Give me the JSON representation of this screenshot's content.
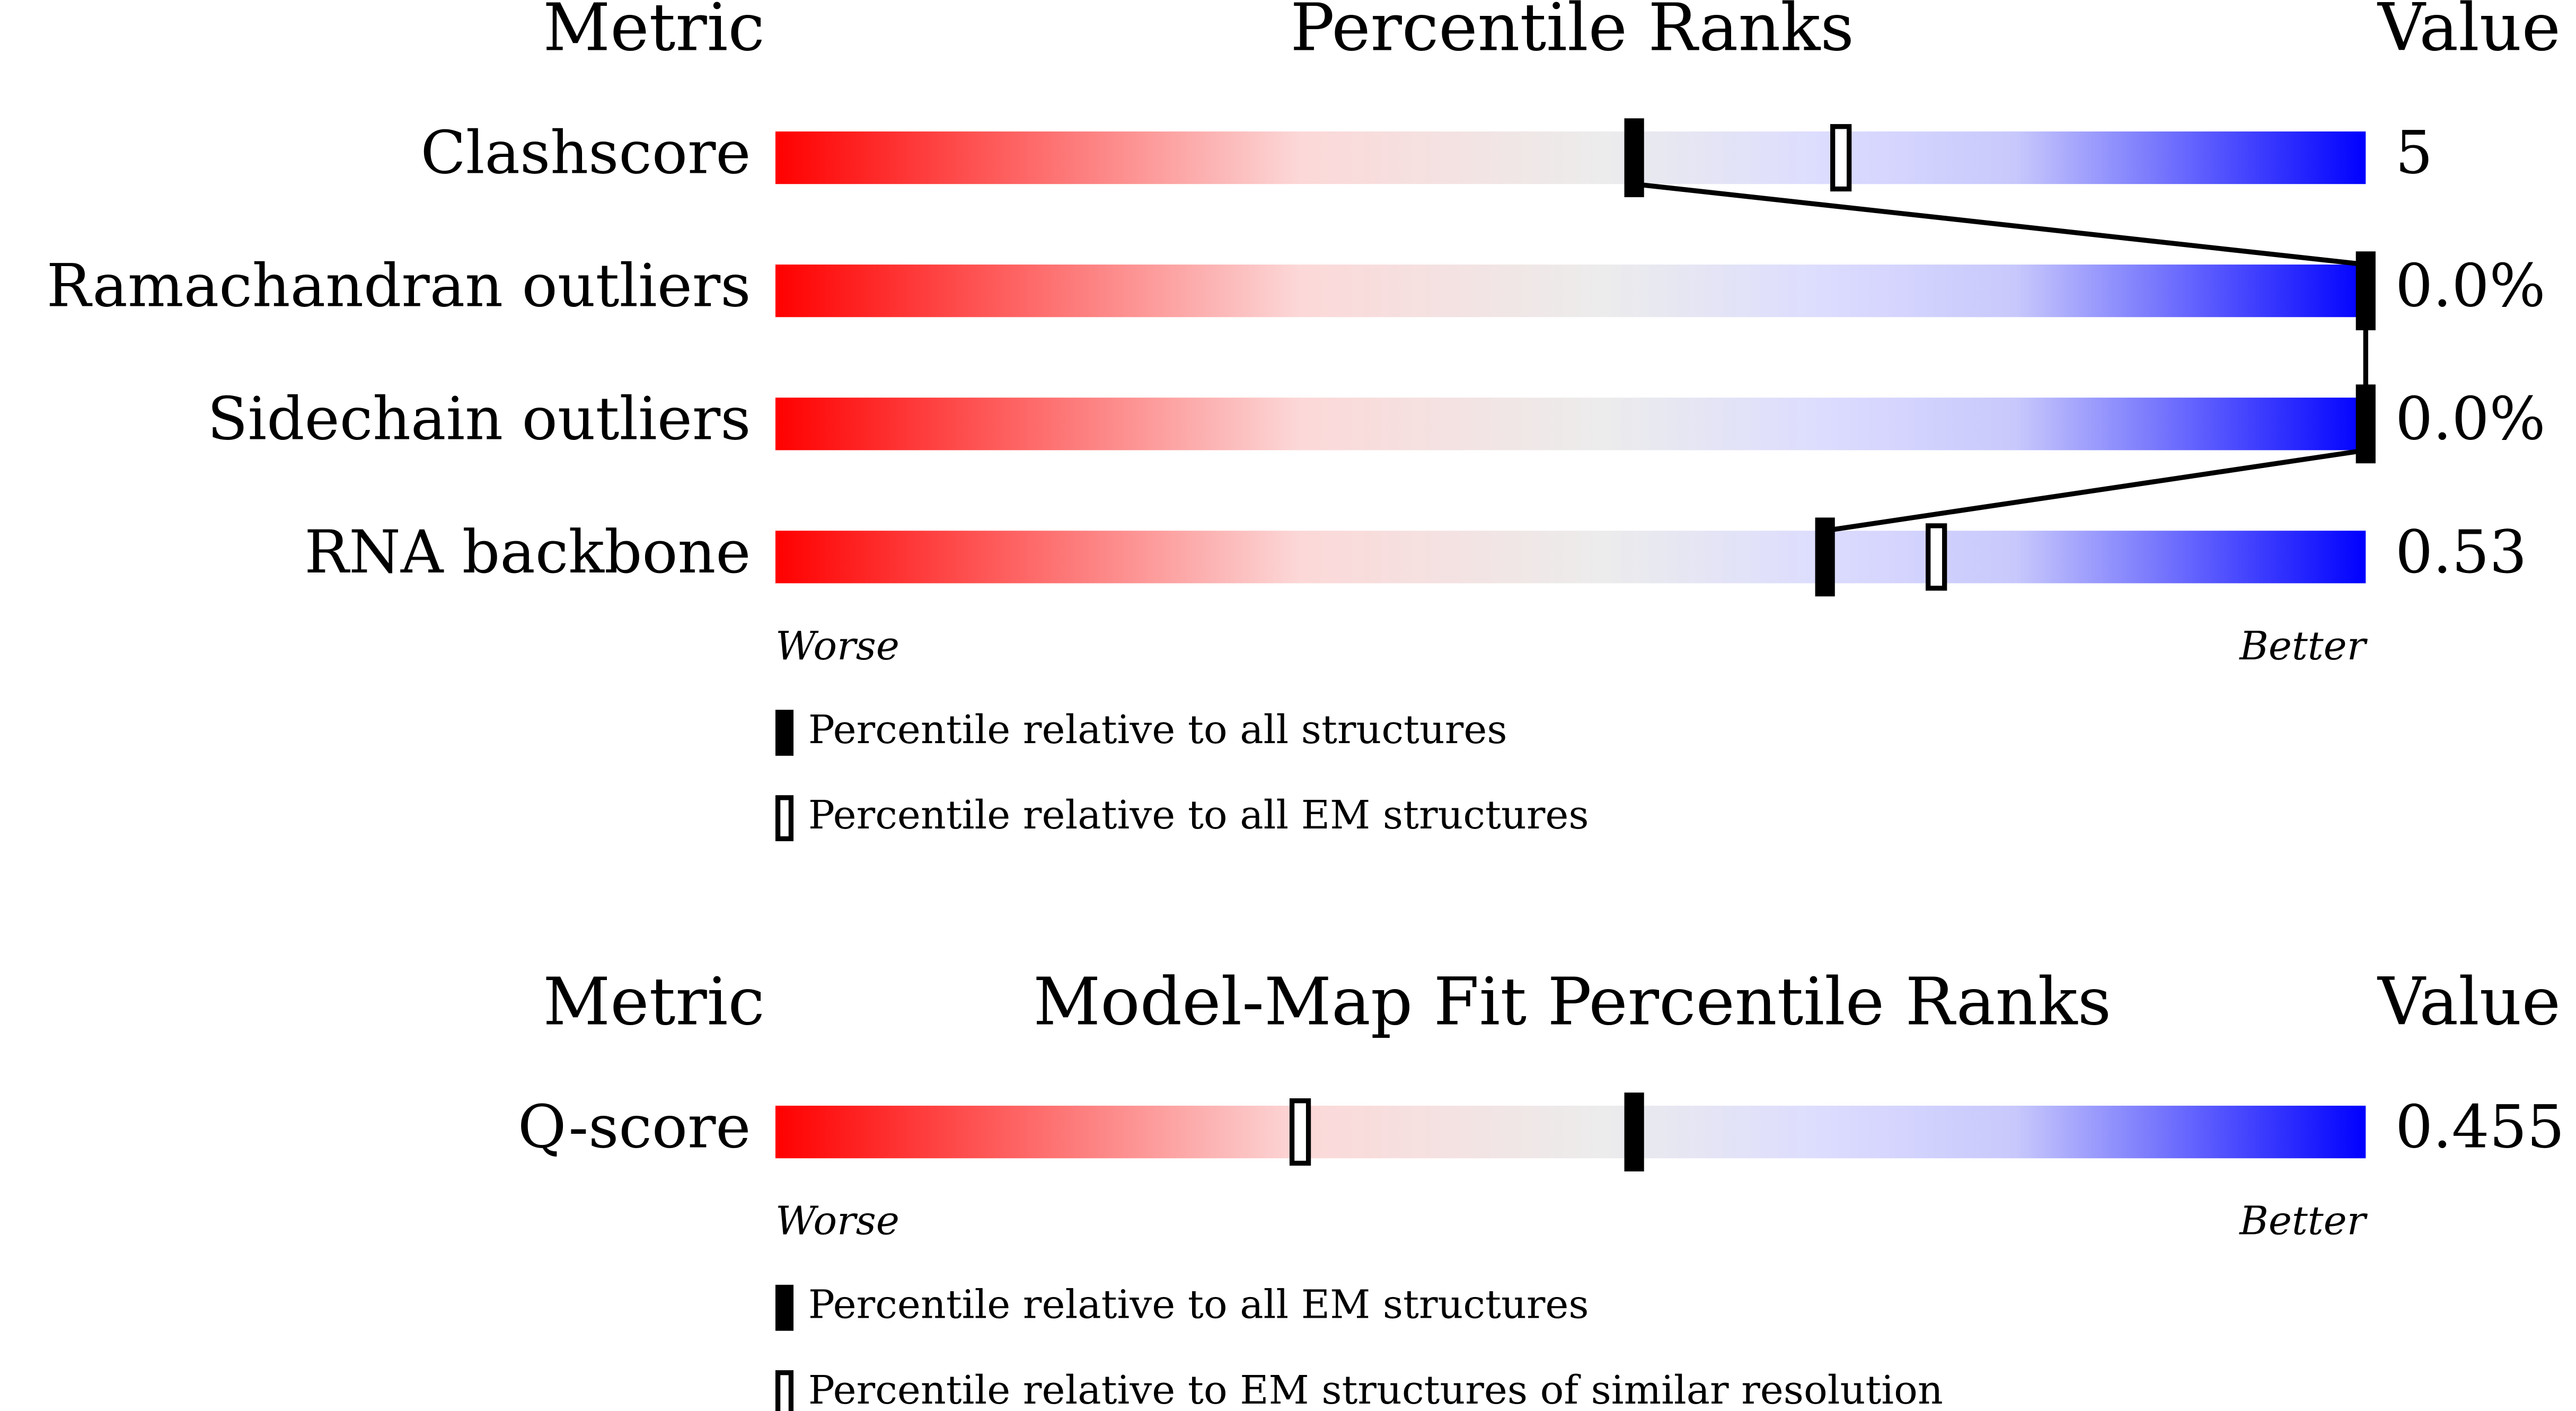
{
  "panels": [
    {
      "headers": {
        "metric": "Metric",
        "title": "Percentile Ranks",
        "value": "Value"
      },
      "scale": [
        0,
        100
      ],
      "connect_filled": true,
      "rows": [
        {
          "metric": "Clashscore",
          "value": "5",
          "filled": 54,
          "open": 67
        },
        {
          "metric": "Ramachandran outliers",
          "value": "0.0%",
          "filled": 100
        },
        {
          "metric": "Sidechain outliers",
          "value": "0.0%",
          "filled": 100
        },
        {
          "metric": "RNA backbone",
          "value": "0.53",
          "filled": 66,
          "open": 73
        }
      ],
      "worse": "Worse",
      "better": "Better",
      "legend": [
        "Percentile relative to all structures",
        "Percentile relative to all EM structures"
      ]
    },
    {
      "headers": {
        "metric": "Metric",
        "title": "Model-Map Fit Percentile Ranks",
        "value": "Value"
      },
      "scale": [
        0,
        100
      ],
      "connect_filled": false,
      "rows": [
        {
          "metric": "Q-score",
          "value": "0.455",
          "filled": 54,
          "open": 33
        }
      ],
      "worse": "Worse",
      "better": "Better",
      "legend": [
        "Percentile relative to all EM structures",
        "Percentile relative to EM structures of similar resolution"
      ]
    }
  ]
}
